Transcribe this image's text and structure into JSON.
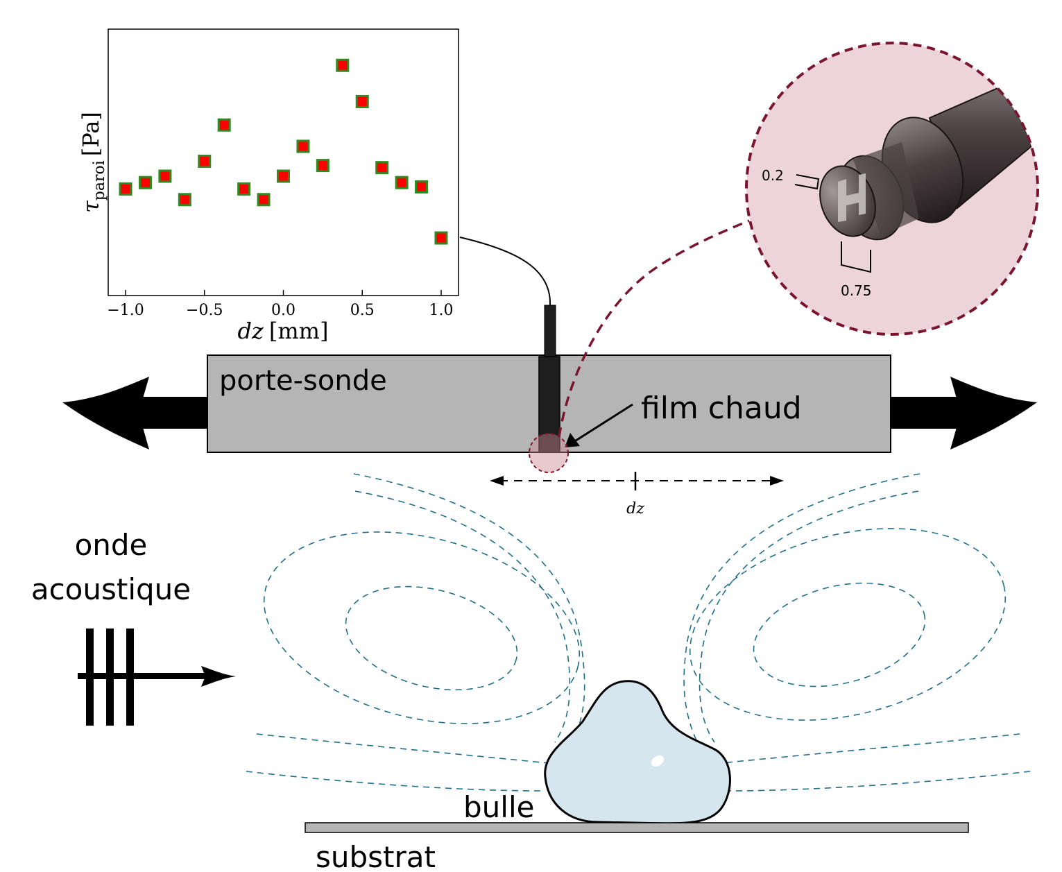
{
  "labels": {
    "porte_sonde": "porte-sonde",
    "film_chaud": "film chaud",
    "onde": "onde",
    "acoustique": "acoustique",
    "bulle": "bulle",
    "substrat": "substrat",
    "dz": "dz"
  },
  "inset": {
    "dim_small": "0.2",
    "dim_large": "0.75"
  },
  "chart_data": {
    "type": "scatter",
    "x": [
      -1.0,
      -0.875,
      -0.75,
      -0.625,
      -0.5,
      -0.375,
      -0.25,
      -0.125,
      0.0,
      0.125,
      0.25,
      0.375,
      0.5,
      0.625,
      0.75,
      0.875,
      1.0
    ],
    "y": [
      0.5,
      0.53,
      0.56,
      0.45,
      0.63,
      0.8,
      0.5,
      0.45,
      0.56,
      0.7,
      0.61,
      1.08,
      0.91,
      0.6,
      0.53,
      0.51,
      0.27
    ],
    "xlabel": "dz [mm]",
    "xlabel_var": "dz",
    "xlabel_unit": "[mm]",
    "ylabel": "τparoi [Pa]",
    "ylabel_sym": "τ",
    "ylabel_sub": "paroi",
    "ylabel_unit": "[Pa]",
    "xlim": [
      -1.11,
      1.11
    ],
    "ylim": [
      0.0,
      1.25
    ],
    "xticks": [
      "−1.0",
      "−0.5",
      "0.0",
      "0.5",
      "1.0"
    ],
    "xtick_values": [
      -1.0,
      -0.5,
      0.0,
      0.5,
      1.0
    ],
    "marker": "square",
    "marker_fill": "#ff0000",
    "marker_edge": "#2e8b22"
  },
  "colors": {
    "probe_holder": "#b5b5b5",
    "streamline": "#1f6f8b",
    "zoom_dash": "#7a1530",
    "bubble": "#d6e6ee"
  }
}
